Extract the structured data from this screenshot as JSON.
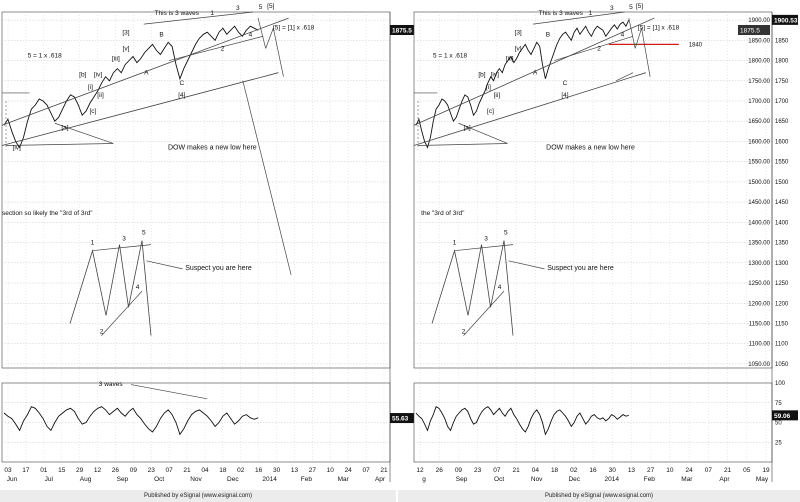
{
  "colors": {
    "price": "#111111",
    "grid": "#c8c8c8",
    "frame": "#444444",
    "annot": "#444444",
    "red": "#d11a1a",
    "bg": "#ffffff",
    "footer": "#ececec",
    "last_price_bg": "#111111",
    "last_price_fg": "#ffffff"
  },
  "footer": {
    "left": "Published by eSignal (www.esignal.com)",
    "right": "Published by eSignal (www.esignal.com)"
  },
  "chart_data": [
    {
      "type": "line",
      "panel": "left",
      "title": "",
      "price_axis": {
        "ylim": [
          1040,
          1920
        ],
        "ticks": []
      },
      "osc_axis": {
        "ylim": [
          0,
          100
        ],
        "ticks": []
      },
      "last_value_label": "1875.5",
      "osc_value_label": "55.63",
      "xaxis_days": [
        "03",
        "17",
        "01",
        "15",
        "29",
        "12",
        "26",
        "09",
        "23",
        "07",
        "21",
        "04",
        "18",
        "02",
        "16",
        "30",
        "13",
        "27",
        "10",
        "24",
        "07",
        "21"
      ],
      "xaxis_months": [
        "Jun",
        "Jul",
        "Aug",
        "Sep",
        "Oct",
        "Nov",
        "Dec",
        "2014",
        "Feb",
        "Mar",
        "Apr"
      ],
      "series": [
        {
          "values": [
            1640,
            1655,
            1625,
            1600,
            1585,
            1610,
            1650,
            1680,
            1690,
            1705,
            1700,
            1690,
            1670,
            1650,
            1660,
            1680,
            1700,
            1715,
            1710,
            1690,
            1665,
            1675,
            1695,
            1710,
            1725,
            1745,
            1760,
            1750,
            1770,
            1780,
            1770,
            1790,
            1800,
            1810,
            1795,
            1805,
            1820,
            1830,
            1840,
            1825,
            1815,
            1830,
            1845,
            1835,
            1790,
            1755,
            1780,
            1800,
            1820,
            1840,
            1855,
            1865,
            1870,
            1860,
            1850,
            1870,
            1880,
            1865,
            1875,
            1885,
            1870,
            1860,
            1875,
            1885,
            1880,
            1875
          ]
        }
      ],
      "oscillator": [
        62,
        58,
        55,
        48,
        40,
        52,
        60,
        70,
        68,
        62,
        55,
        45,
        40,
        50,
        58,
        62,
        66,
        68,
        64,
        55,
        48,
        50,
        58,
        64,
        68,
        70,
        66,
        60,
        64,
        68,
        62,
        58,
        64,
        68,
        60,
        55,
        48,
        42,
        38,
        45,
        55,
        62,
        66,
        60,
        50,
        35,
        42,
        52,
        60,
        64,
        66,
        62,
        58,
        52,
        45,
        50,
        58,
        62,
        55,
        48,
        52,
        58,
        60,
        56,
        54,
        56
      ],
      "annotations": {
        "wave_labels": [
          "1",
          "2",
          "3",
          "4",
          "5",
          "[5]",
          "A",
          "B",
          "C",
          "[3]",
          "[4]",
          "[v]",
          "[iii]",
          "[iv]",
          "[b]",
          "[c]",
          "[ii]",
          "[i]",
          "[a]",
          "[iv]"
        ],
        "this_is_3_waves": "This is 3 waves",
        "ratio_top": "[5] = [1] x .618",
        "ratio_mid": "5 = 1 x .618",
        "dow_note": "DOW makes a new low here",
        "section_note": "section so likely the \"3rd of 3rd\"",
        "suspect_note": "Suspect you are here",
        "three_waves_osc": "3 waves",
        "sketch_labels": [
          "1",
          "2",
          "3",
          "4",
          "5"
        ]
      }
    },
    {
      "type": "line",
      "panel": "right",
      "title": "",
      "price_axis": {
        "ylim": [
          1040,
          1920
        ],
        "ticks": [
          "1900.00",
          "1850.00",
          "1800.00",
          "1750.00",
          "1700.00",
          "1650.00",
          "1600.00",
          "1550.00",
          "1500.00",
          "1450.00",
          "1400.00",
          "1350.00",
          "1300.00",
          "1250.00",
          "1200.00",
          "1150.00",
          "1100.00",
          "1050.00"
        ]
      },
      "price_axis_right": {
        "ticks": [
          "1850",
          "1800",
          "1750",
          "1700",
          "1650",
          "1600",
          "1550",
          "1500",
          "1450",
          "1400",
          "1350",
          "1300",
          "1250",
          "1200",
          "1150",
          "1100",
          "1050"
        ]
      },
      "osc_axis": {
        "ylim": [
          0,
          100
        ],
        "ticks": [
          "100",
          "75",
          "50",
          "25"
        ]
      },
      "last_value_label": "1900.53",
      "prior_value_label": "1875.5",
      "osc_value_label": "59.06",
      "red_level": {
        "label": "1840",
        "value": 1840
      },
      "xaxis_days": [
        "12",
        "26",
        "09",
        "23",
        "07",
        "21",
        "04",
        "18",
        "02",
        "16",
        "30",
        "13",
        "27",
        "10",
        "24",
        "07",
        "21",
        "05",
        "19"
      ],
      "xaxis_months": [
        "g",
        "Sep",
        "Oct",
        "Nov",
        "Dec",
        "2014",
        "Feb",
        "Mar",
        "Apr",
        "May"
      ],
      "series": [
        {
          "values": [
            1640,
            1655,
            1625,
            1600,
            1585,
            1610,
            1650,
            1680,
            1690,
            1705,
            1700,
            1690,
            1670,
            1650,
            1660,
            1680,
            1700,
            1715,
            1710,
            1690,
            1665,
            1675,
            1695,
            1710,
            1725,
            1745,
            1760,
            1750,
            1770,
            1780,
            1770,
            1790,
            1800,
            1810,
            1795,
            1805,
            1820,
            1830,
            1840,
            1825,
            1815,
            1830,
            1845,
            1835,
            1790,
            1755,
            1780,
            1800,
            1820,
            1840,
            1855,
            1865,
            1870,
            1860,
            1850,
            1870,
            1880,
            1865,
            1875,
            1885,
            1870,
            1860,
            1875,
            1885,
            1880,
            1875,
            1860,
            1870,
            1880,
            1888,
            1878,
            1890,
            1895,
            1885,
            1900
          ]
        }
      ],
      "oscillator": [
        62,
        58,
        55,
        48,
        40,
        52,
        60,
        70,
        68,
        62,
        55,
        45,
        40,
        50,
        58,
        62,
        66,
        68,
        64,
        55,
        48,
        50,
        58,
        64,
        68,
        70,
        66,
        60,
        64,
        68,
        62,
        58,
        64,
        68,
        60,
        55,
        48,
        42,
        38,
        45,
        55,
        62,
        66,
        60,
        50,
        35,
        42,
        52,
        60,
        64,
        66,
        62,
        58,
        52,
        45,
        50,
        58,
        62,
        55,
        48,
        52,
        58,
        60,
        56,
        54,
        56,
        52,
        55,
        60,
        58,
        54,
        57,
        60,
        58,
        59
      ],
      "annotations": {
        "wave_labels": [
          "1",
          "2",
          "3",
          "4",
          "5",
          "[5]",
          "A",
          "B",
          "C",
          "[3]",
          "[4]",
          "[v]",
          "[iii]",
          "[iv]",
          "[b]",
          "[c]",
          "[ii]",
          "[i]",
          "[a]"
        ],
        "this_is_3_waves": "This is 3 waves",
        "ratio_top": "[5] = [1] x .618",
        "ratio_mid": "5 = 1 x .618",
        "dow_note": "DOW makes a new low here",
        "section_note": "the \"3rd of 3rd\"",
        "suspect_note": "Suspect you are here",
        "sketch_labels": [
          "1",
          "2",
          "3",
          "4",
          "5"
        ]
      }
    }
  ]
}
